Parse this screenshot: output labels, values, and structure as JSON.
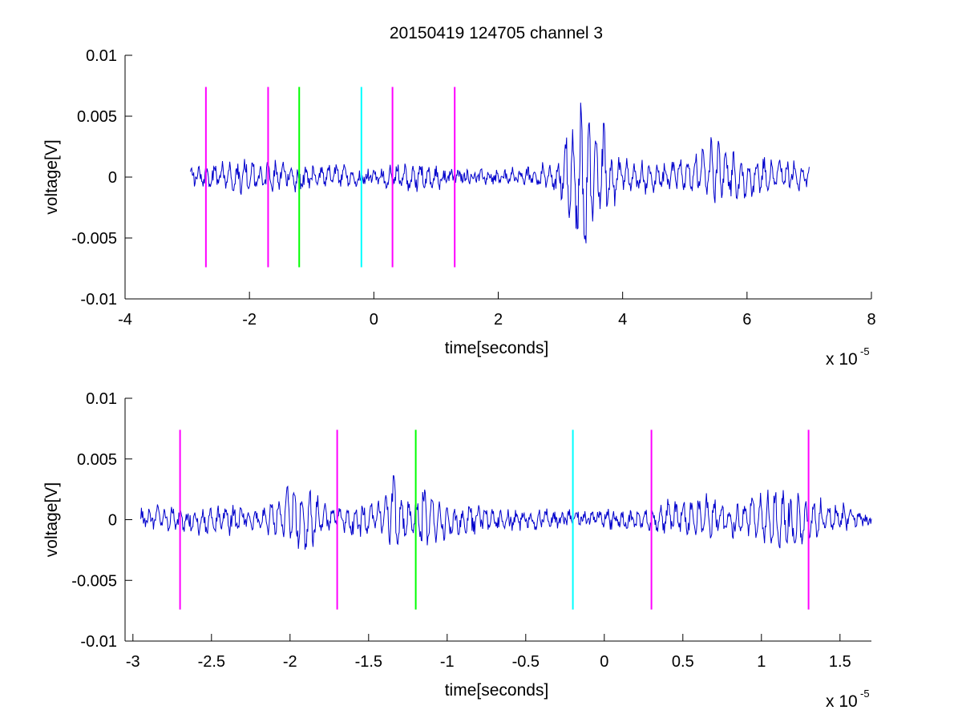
{
  "chart_data": [
    {
      "type": "line",
      "title": "20150419 124705 channel 3",
      "xlabel": "time[seconds]",
      "ylabel": "voltage[V]",
      "x_exponent_label": "x 10",
      "x_exponent_power": "-5",
      "xlim": [
        -4e-05,
        8e-05
      ],
      "ylim": [
        -0.01,
        0.01
      ],
      "xticks": [
        -4e-05,
        -2e-05,
        0,
        2e-05,
        4e-05,
        6e-05,
        8e-05
      ],
      "xtick_labels": [
        "-4",
        "-2",
        "0",
        "2",
        "4",
        "6",
        "8"
      ],
      "yticks": [
        0.01,
        0.005,
        0,
        -0.005,
        -0.01
      ],
      "ytick_labels": [
        "0.01",
        "0.005",
        "0",
        "-0.005",
        "-0.01"
      ],
      "grid": false,
      "signal_color": "#0000cc",
      "series": [
        {
          "x": [
            -2.95e-05,
            -2.5e-05,
            -2.2e-05,
            -2e-05,
            -1.8e-05,
            -1.6e-05,
            -1.4e-05,
            -1.2e-05,
            -1e-05,
            -8e-06,
            -6e-06,
            -4e-06,
            -2e-06,
            0,
            2e-06,
            4e-06,
            6e-06,
            8e-06,
            1e-05,
            1.2e-05,
            1.5e-05,
            2e-05,
            2.5e-05,
            2.8e-05,
            3e-05,
            3.1e-05,
            3.2e-05,
            3.3e-05,
            3.4e-05,
            3.5e-05,
            3.6e-05,
            3.7e-05,
            3.8e-05,
            4e-05,
            4.5e-05,
            5e-05,
            5.5e-05,
            6e-05,
            6.5e-05,
            7e-05
          ],
          "y": [
            0.0005,
            0.001,
            -0.0012,
            0.0015,
            -0.001,
            0.0012,
            0.001,
            -0.001,
            0.0007,
            -0.0005,
            0.001,
            0.0005,
            -0.0003,
            0.0004,
            -0.0007,
            0.001,
            -0.0012,
            0.0011,
            -0.0008,
            0.0004,
            0.0003,
            -0.0004,
            0.0006,
            0.001,
            -0.0014,
            0.003,
            -0.0055,
            0.0065,
            -0.0065,
            0.0052,
            -0.003,
            0.0045,
            -0.0025,
            0.0012,
            -0.0011,
            0.0012,
            0.0028,
            -0.0013,
            0.0014,
            0.0008
          ]
        }
      ],
      "markers": [
        {
          "x": -2.7e-05,
          "color": "#ff00ff"
        },
        {
          "x": -1.7e-05,
          "color": "#ff00ff"
        },
        {
          "x": -1.2e-05,
          "color": "#00ff00"
        },
        {
          "x": -2e-06,
          "color": "#00ffff"
        },
        {
          "x": 3e-06,
          "color": "#ff00ff"
        },
        {
          "x": 1.3e-05,
          "color": "#ff00ff"
        }
      ],
      "marker_range": [
        -0.0074,
        0.0074
      ]
    },
    {
      "type": "line",
      "title": "",
      "xlabel": "time[seconds]",
      "ylabel": "voltage[V]",
      "x_exponent_label": "x 10",
      "x_exponent_power": "-5",
      "xlim": [
        -3.05e-05,
        1.7e-05
      ],
      "ylim": [
        -0.01,
        0.01
      ],
      "xticks": [
        -3e-05,
        -2.5e-05,
        -2e-05,
        -1.5e-05,
        -1e-05,
        -5e-06,
        0,
        5e-06,
        1e-05,
        1.5e-05
      ],
      "xtick_labels": [
        "-3",
        "-2.5",
        "-2",
        "-1.5",
        "-1",
        "-0.5",
        "0",
        "0.5",
        "1",
        "1.5"
      ],
      "yticks": [
        0.01,
        0.005,
        0,
        -0.005,
        -0.01
      ],
      "ytick_labels": [
        "0.01",
        "0.005",
        "0",
        "-0.005",
        "-0.01"
      ],
      "grid": false,
      "signal_color": "#0000cc",
      "series": [
        {
          "x": [
            -2.95e-05,
            -2.8e-05,
            -2.6e-05,
            -2.4e-05,
            -2.2e-05,
            -2e-05,
            -1.9e-05,
            -1.8e-05,
            -1.7e-05,
            -1.6e-05,
            -1.5e-05,
            -1.4e-05,
            -1.35e-05,
            -1.3e-05,
            -1.25e-05,
            -1.2e-05,
            -1.15e-05,
            -1e-05,
            -8e-06,
            -6e-06,
            -4e-06,
            -2e-06,
            0,
            2e-06,
            4e-06,
            6e-06,
            8e-06,
            1e-05,
            1.2e-05,
            1.4e-05,
            1.6e-05,
            1.7e-05
          ],
          "y": [
            0.0005,
            0.001,
            -0.0008,
            0.0012,
            -0.0005,
            0.0026,
            -0.0028,
            0.0015,
            0.001,
            -0.0012,
            0.0013,
            0.001,
            0.0045,
            -0.0022,
            0.0017,
            -0.0017,
            0.0029,
            -0.0012,
            0.001,
            -0.0008,
            0.0006,
            0.0004,
            0.0005,
            -0.0005,
            0.0012,
            0.0019,
            -0.0011,
            0.0024,
            -0.0025,
            0.0014,
            0.0005,
            -0.0003
          ]
        }
      ],
      "markers": [
        {
          "x": -2.7e-05,
          "color": "#ff00ff"
        },
        {
          "x": -1.7e-05,
          "color": "#ff00ff"
        },
        {
          "x": -1.2e-05,
          "color": "#00ff00"
        },
        {
          "x": -2e-06,
          "color": "#00ffff"
        },
        {
          "x": 3e-06,
          "color": "#ff00ff"
        },
        {
          "x": 1.3e-05,
          "color": "#ff00ff"
        }
      ],
      "marker_range": [
        -0.0074,
        0.0074
      ]
    }
  ]
}
